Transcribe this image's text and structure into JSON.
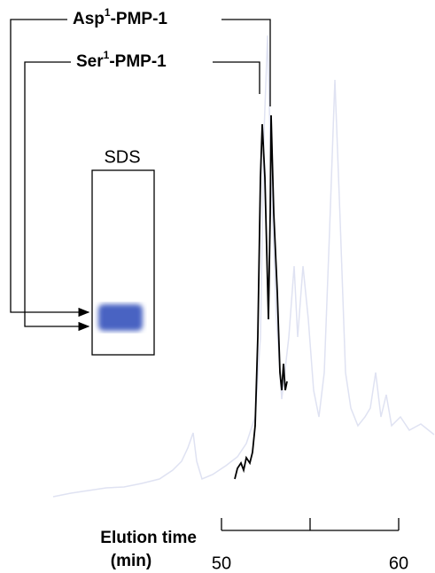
{
  "chart_data": {
    "type": "line",
    "labels": [
      {
        "name": "Asp",
        "superscript": "1",
        "suffix": "-PMP-1"
      },
      {
        "name": "Ser",
        "superscript": "1",
        "suffix": "-PMP-1"
      }
    ],
    "gel_label": "SDS",
    "xlabel": [
      "Elution time",
      "(min)"
    ],
    "xlim": [
      50,
      60
    ],
    "xticks": [
      50,
      60
    ]
  }
}
